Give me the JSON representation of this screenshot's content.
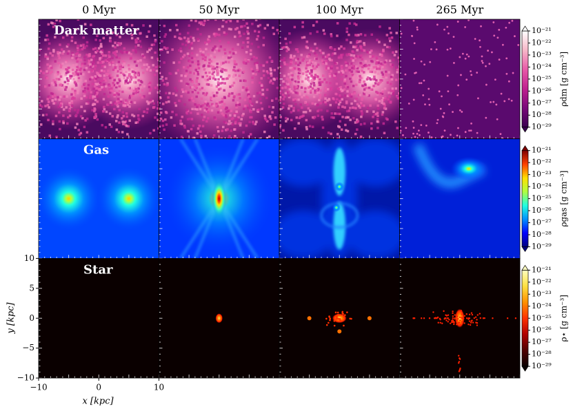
{
  "chart_data": {
    "type": "image-grid",
    "columns": [
      "0 Myr",
      "50 Myr",
      "100 Myr",
      "265 Myr"
    ],
    "rows": [
      {
        "name": "Dark matter",
        "colorbar_label": "ρdm [g cm⁻³]",
        "colormap": [
          "#3a0050",
          "#7a0a7a",
          "#c0208f",
          "#e85aa8",
          "#f7b7c8",
          "#ffffff"
        ]
      },
      {
        "name": "Gas",
        "colorbar_label": "ρgas [g cm⁻³]",
        "colormap": [
          "#00007f",
          "#0000ff",
          "#0090ff",
          "#20ffe0",
          "#b0ff40",
          "#ffe000",
          "#ff4000",
          "#7f0000"
        ]
      },
      {
        "name": "Star",
        "colorbar_label": "ρ⋆ [g cm⁻³]",
        "colormap": [
          "#0a0000",
          "#500000",
          "#b00000",
          "#ff3000",
          "#ff9000",
          "#ffe040",
          "#ffffc0"
        ]
      }
    ],
    "xlabel": "x [kpc]",
    "ylabel": "y [kpc]",
    "xlim": [
      -10,
      10
    ],
    "ylim": [
      -10,
      10
    ],
    "xticks": [
      {
        "value": -10,
        "label": "−10"
      },
      0,
      10
    ],
    "yticks": [
      {
        "value": -10,
        "label": "−10"
      },
      {
        "value": -5,
        "label": "−5"
      },
      0,
      5,
      10
    ],
    "clim": [
      1e-29,
      1e-21
    ],
    "cscale": "log",
    "cticks": [
      {
        "value": 1e-21,
        "label": "10⁻²¹"
      },
      {
        "value": 1e-22,
        "label": "10⁻²²"
      },
      {
        "value": 1e-23,
        "label": "10⁻²³"
      },
      {
        "value": 1e-24,
        "label": "10⁻²⁴"
      },
      {
        "value": 1e-25,
        "label": "10⁻²⁵"
      },
      {
        "value": 1e-26,
        "label": "10⁻²⁶"
      },
      {
        "value": 1e-27,
        "label": "10⁻²⁷"
      },
      {
        "value": 1e-28,
        "label": "10⁻²⁸"
      },
      {
        "value": 1e-29,
        "label": "10⁻²⁹"
      }
    ]
  }
}
